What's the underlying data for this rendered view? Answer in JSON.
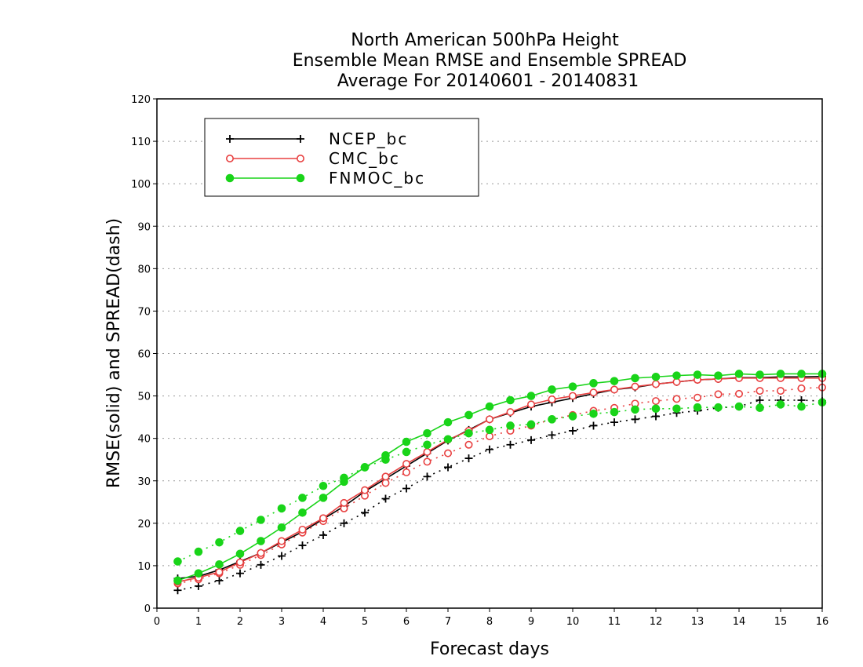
{
  "chart_data": {
    "type": "line",
    "title": [
      "North American 500hPa Height",
      "Ensemble Mean RMSE and Ensemble SPREAD",
      "Average For 20140601 - 20140831"
    ],
    "xlabel": "Forecast days",
    "ylabel": "RMSE(solid) and SPREAD(dash)",
    "xlim": [
      0,
      16
    ],
    "ylim": [
      0,
      120
    ],
    "xticks": [
      0,
      1,
      2,
      3,
      4,
      5,
      6,
      7,
      8,
      9,
      10,
      11,
      12,
      13,
      14,
      15,
      16
    ],
    "yticks": [
      0,
      10,
      20,
      30,
      40,
      50,
      60,
      70,
      80,
      90,
      100,
      110,
      120
    ],
    "grid": true,
    "legend_placement": "top-left",
    "x": [
      0.5,
      1,
      1.5,
      2,
      2.5,
      3,
      3.5,
      4,
      4.5,
      5,
      5.5,
      6,
      6.5,
      7,
      7.5,
      8,
      8.5,
      9,
      9.5,
      10,
      10.5,
      11,
      11.5,
      12,
      12.5,
      13,
      13.5,
      14,
      14.5,
      15,
      15.5,
      16
    ],
    "series": [
      {
        "name": "NCEP_bc",
        "color": "#000000",
        "marker": "plus",
        "rmse": [
          7.0,
          7.5,
          9.0,
          11.0,
          13.0,
          15.5,
          18.0,
          21.0,
          24.0,
          27.5,
          30.5,
          33.5,
          36.5,
          39.5,
          42.0,
          44.5,
          46.0,
          47.5,
          48.5,
          49.5,
          50.5,
          51.5,
          52.0,
          52.8,
          53.3,
          53.8,
          54.0,
          54.3,
          54.3,
          54.5,
          54.5,
          54.6
        ],
        "spread": [
          4.2,
          5.2,
          6.5,
          8.2,
          10.2,
          12.3,
          14.8,
          17.2,
          20.0,
          22.5,
          25.8,
          28.2,
          31.0,
          33.2,
          35.3,
          37.4,
          38.5,
          39.6,
          40.8,
          41.8,
          43.0,
          43.8,
          44.5,
          45.2,
          46.0,
          46.5,
          47.2,
          47.5,
          49.0,
          49.0,
          49.0,
          48.8
        ]
      },
      {
        "name": "CMC_bc",
        "color": "#e84040",
        "marker": "open-circle",
        "rmse": [
          6.2,
          7.2,
          8.5,
          10.8,
          13.0,
          15.8,
          18.5,
          21.2,
          24.8,
          27.8,
          31.0,
          34.0,
          36.8,
          39.7,
          41.8,
          44.5,
          46.2,
          48.0,
          49.2,
          50.0,
          50.8,
          51.5,
          52.2,
          52.8,
          53.3,
          53.8,
          54.0,
          54.2,
          54.2,
          54.2,
          54.2,
          54.2
        ],
        "spread": [
          5.8,
          6.8,
          8.2,
          10.2,
          12.5,
          15.0,
          17.8,
          20.5,
          23.5,
          26.5,
          29.5,
          32.0,
          34.5,
          36.5,
          38.5,
          40.5,
          41.8,
          43.0,
          44.5,
          45.5,
          46.5,
          47.2,
          48.2,
          48.8,
          49.3,
          49.6,
          50.4,
          50.5,
          51.2,
          51.2,
          51.8,
          52.0
        ]
      },
      {
        "name": "FNMOC_bc",
        "color": "#19d419",
        "marker": "filled-circle",
        "rmse": [
          6.5,
          8.2,
          10.3,
          12.8,
          15.8,
          19.0,
          22.5,
          26.0,
          29.8,
          33.2,
          36.0,
          39.2,
          41.2,
          43.8,
          45.5,
          47.5,
          49.0,
          50.0,
          51.5,
          52.2,
          53.0,
          53.5,
          54.2,
          54.5,
          54.8,
          55.0,
          54.8,
          55.2,
          55.0,
          55.2,
          55.2,
          55.2
        ],
        "spread": [
          11.0,
          13.3,
          15.5,
          18.2,
          20.8,
          23.5,
          26.0,
          28.8,
          30.7,
          33.2,
          35.0,
          36.8,
          38.5,
          39.8,
          41.2,
          42.0,
          43.0,
          43.3,
          44.5,
          45.2,
          45.8,
          46.2,
          46.8,
          47.0,
          47.0,
          47.3,
          47.3,
          47.5,
          47.2,
          48.0,
          47.5,
          48.5
        ]
      }
    ]
  }
}
